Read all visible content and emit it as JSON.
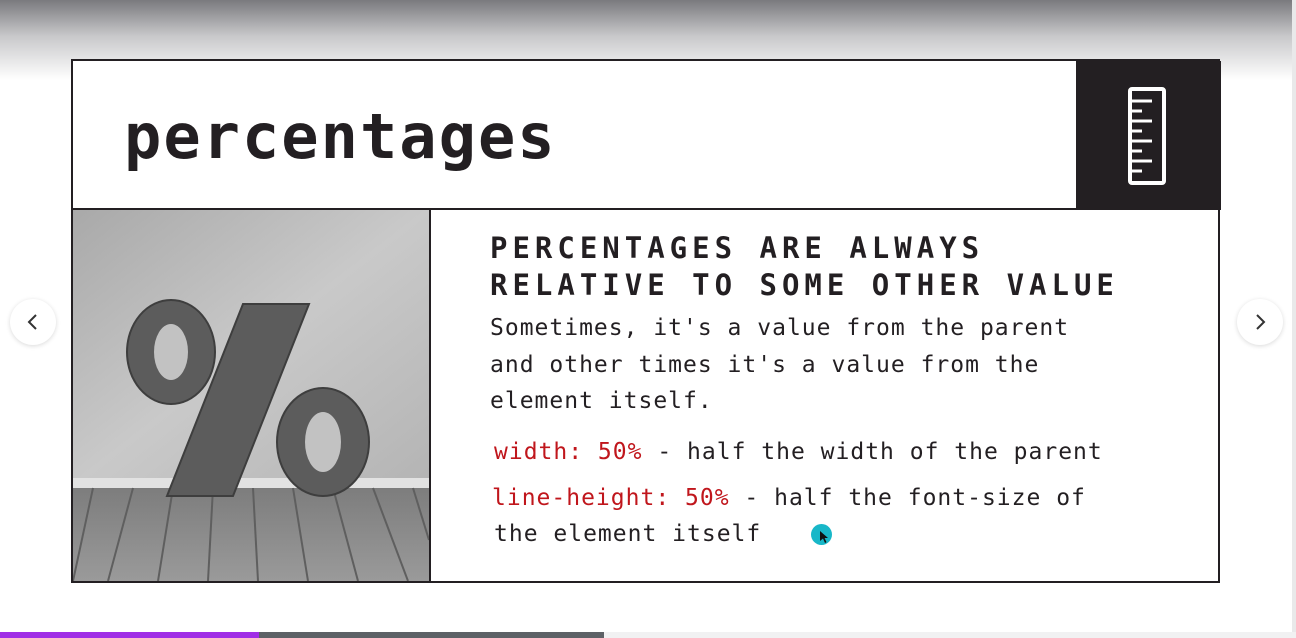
{
  "slide": {
    "title": "percentages",
    "header_icon": "ruler-icon",
    "image": {
      "subject": "percent-sign-sculpture"
    },
    "heading": [
      "PERCENTAGES ARE ALWAYS",
      "RELATIVE TO SOME OTHER VALUE"
    ],
    "paragraph": [
      "Sometimes, it's a value from the parent",
      "and other times it's a value from the",
      "element itself."
    ],
    "rules": [
      {
        "code": "width: 50%",
        "text": " - half the width of the parent"
      },
      {
        "code": "line-height: 50%",
        "text": " - half the font-size of",
        "continuation": "the element itself"
      }
    ]
  },
  "navigation": {
    "prev_icon": "chevron-left-icon",
    "next_icon": "chevron-right-icon"
  },
  "progress": {
    "percent": 20,
    "track_percent": 46.6
  },
  "colors": {
    "ink": "#231f22",
    "code": "#c0161c",
    "cursor": "#18b7c8",
    "progress_fill": "#a02ee6"
  }
}
